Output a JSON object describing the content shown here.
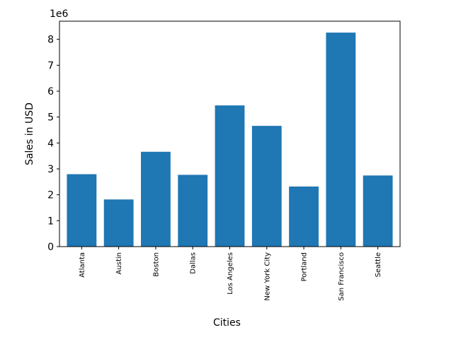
{
  "chart_data": {
    "type": "bar",
    "categories": [
      "Atlanta",
      "Austin",
      "Boston",
      "Dallas",
      "Los Angeles",
      "New York City",
      "Portland",
      "San Francisco",
      "Seattle"
    ],
    "values": [
      2795000,
      1820000,
      3660000,
      2770000,
      5450000,
      4660000,
      2320000,
      8260000,
      2745000
    ],
    "title": "",
    "xlabel": "Cities",
    "ylabel": "Sales in USD",
    "ylim": [
      0,
      8700000
    ],
    "yticks": [
      0,
      1,
      2,
      3,
      4,
      5,
      6,
      7,
      8
    ],
    "y_multiplier_label": "1e6",
    "bar_color": "#1f77b4",
    "grid": false,
    "legend": "none"
  }
}
